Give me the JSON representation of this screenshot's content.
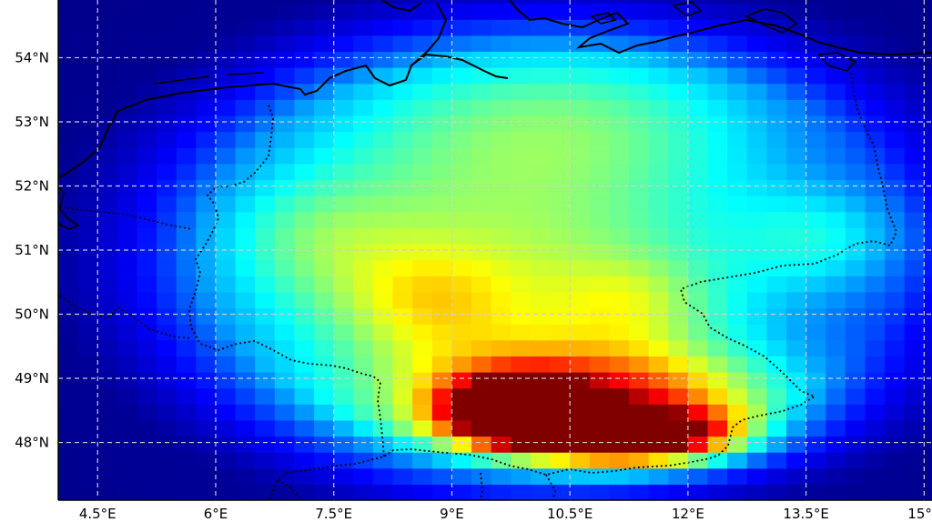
{
  "map": {
    "region": "Germany",
    "colormap": "jet",
    "lon_range": [
      4.0,
      15.1
    ],
    "lat_range": [
      47.1,
      54.9
    ],
    "gridlines": true,
    "x_ticks": [
      {
        "value": 4.5,
        "label": "4.5°E"
      },
      {
        "value": 6.0,
        "label": "6°E"
      },
      {
        "value": 7.5,
        "label": "7.5°E"
      },
      {
        "value": 9.0,
        "label": "9°E"
      },
      {
        "value": 10.5,
        "label": "10.5°E"
      },
      {
        "value": 12.0,
        "label": "12°E"
      },
      {
        "value": 13.5,
        "label": "13.5°E"
      },
      {
        "value": 15.0,
        "label": "15°E"
      }
    ],
    "y_ticks": [
      {
        "value": 54,
        "label": "54°N"
      },
      {
        "value": 53,
        "label": "53°N"
      },
      {
        "value": 52,
        "label": "52°N"
      },
      {
        "value": 51,
        "label": "51°N"
      },
      {
        "value": 50,
        "label": "50°N"
      },
      {
        "value": 49,
        "label": "49°N"
      },
      {
        "value": 48,
        "label": "48°N"
      }
    ],
    "field": {
      "description_values": "normalized intensity 0-1 mapped to jet colormap",
      "background_level": 0.07,
      "blobs": [
        {
          "lon": 9.8,
          "lat": 48.5,
          "peak": 0.93,
          "sx": 0.55,
          "sy": 0.32
        },
        {
          "lon": 11.4,
          "lat": 48.05,
          "peak": 0.74,
          "sx": 0.9,
          "sy": 0.3
        },
        {
          "lon": 10.8,
          "lat": 48.6,
          "peak": 0.55,
          "sx": 1.6,
          "sy": 0.6
        },
        {
          "lon": 9.7,
          "lat": 50.5,
          "peak": 0.47,
          "sx": 2.8,
          "sy": 2.4
        },
        {
          "lon": 8.7,
          "lat": 50.2,
          "peak": 0.15,
          "sx": 0.8,
          "sy": 0.6
        },
        {
          "lon": 11.3,
          "lat": 50.2,
          "peak": 0.13,
          "sx": 0.7,
          "sy": 0.5
        },
        {
          "lon": 13.8,
          "lat": 51.2,
          "peak": 0.16,
          "sx": 0.8,
          "sy": 0.6
        },
        {
          "lon": 7.2,
          "lat": 51.2,
          "peak": 0.13,
          "sx": 0.9,
          "sy": 0.7
        },
        {
          "lon": 10.6,
          "lat": 53.2,
          "peak": 0.18,
          "sx": 2.2,
          "sy": 0.9
        }
      ]
    },
    "border_lines": {
      "coastline_color": "#000000",
      "border_color": "#000000"
    }
  }
}
